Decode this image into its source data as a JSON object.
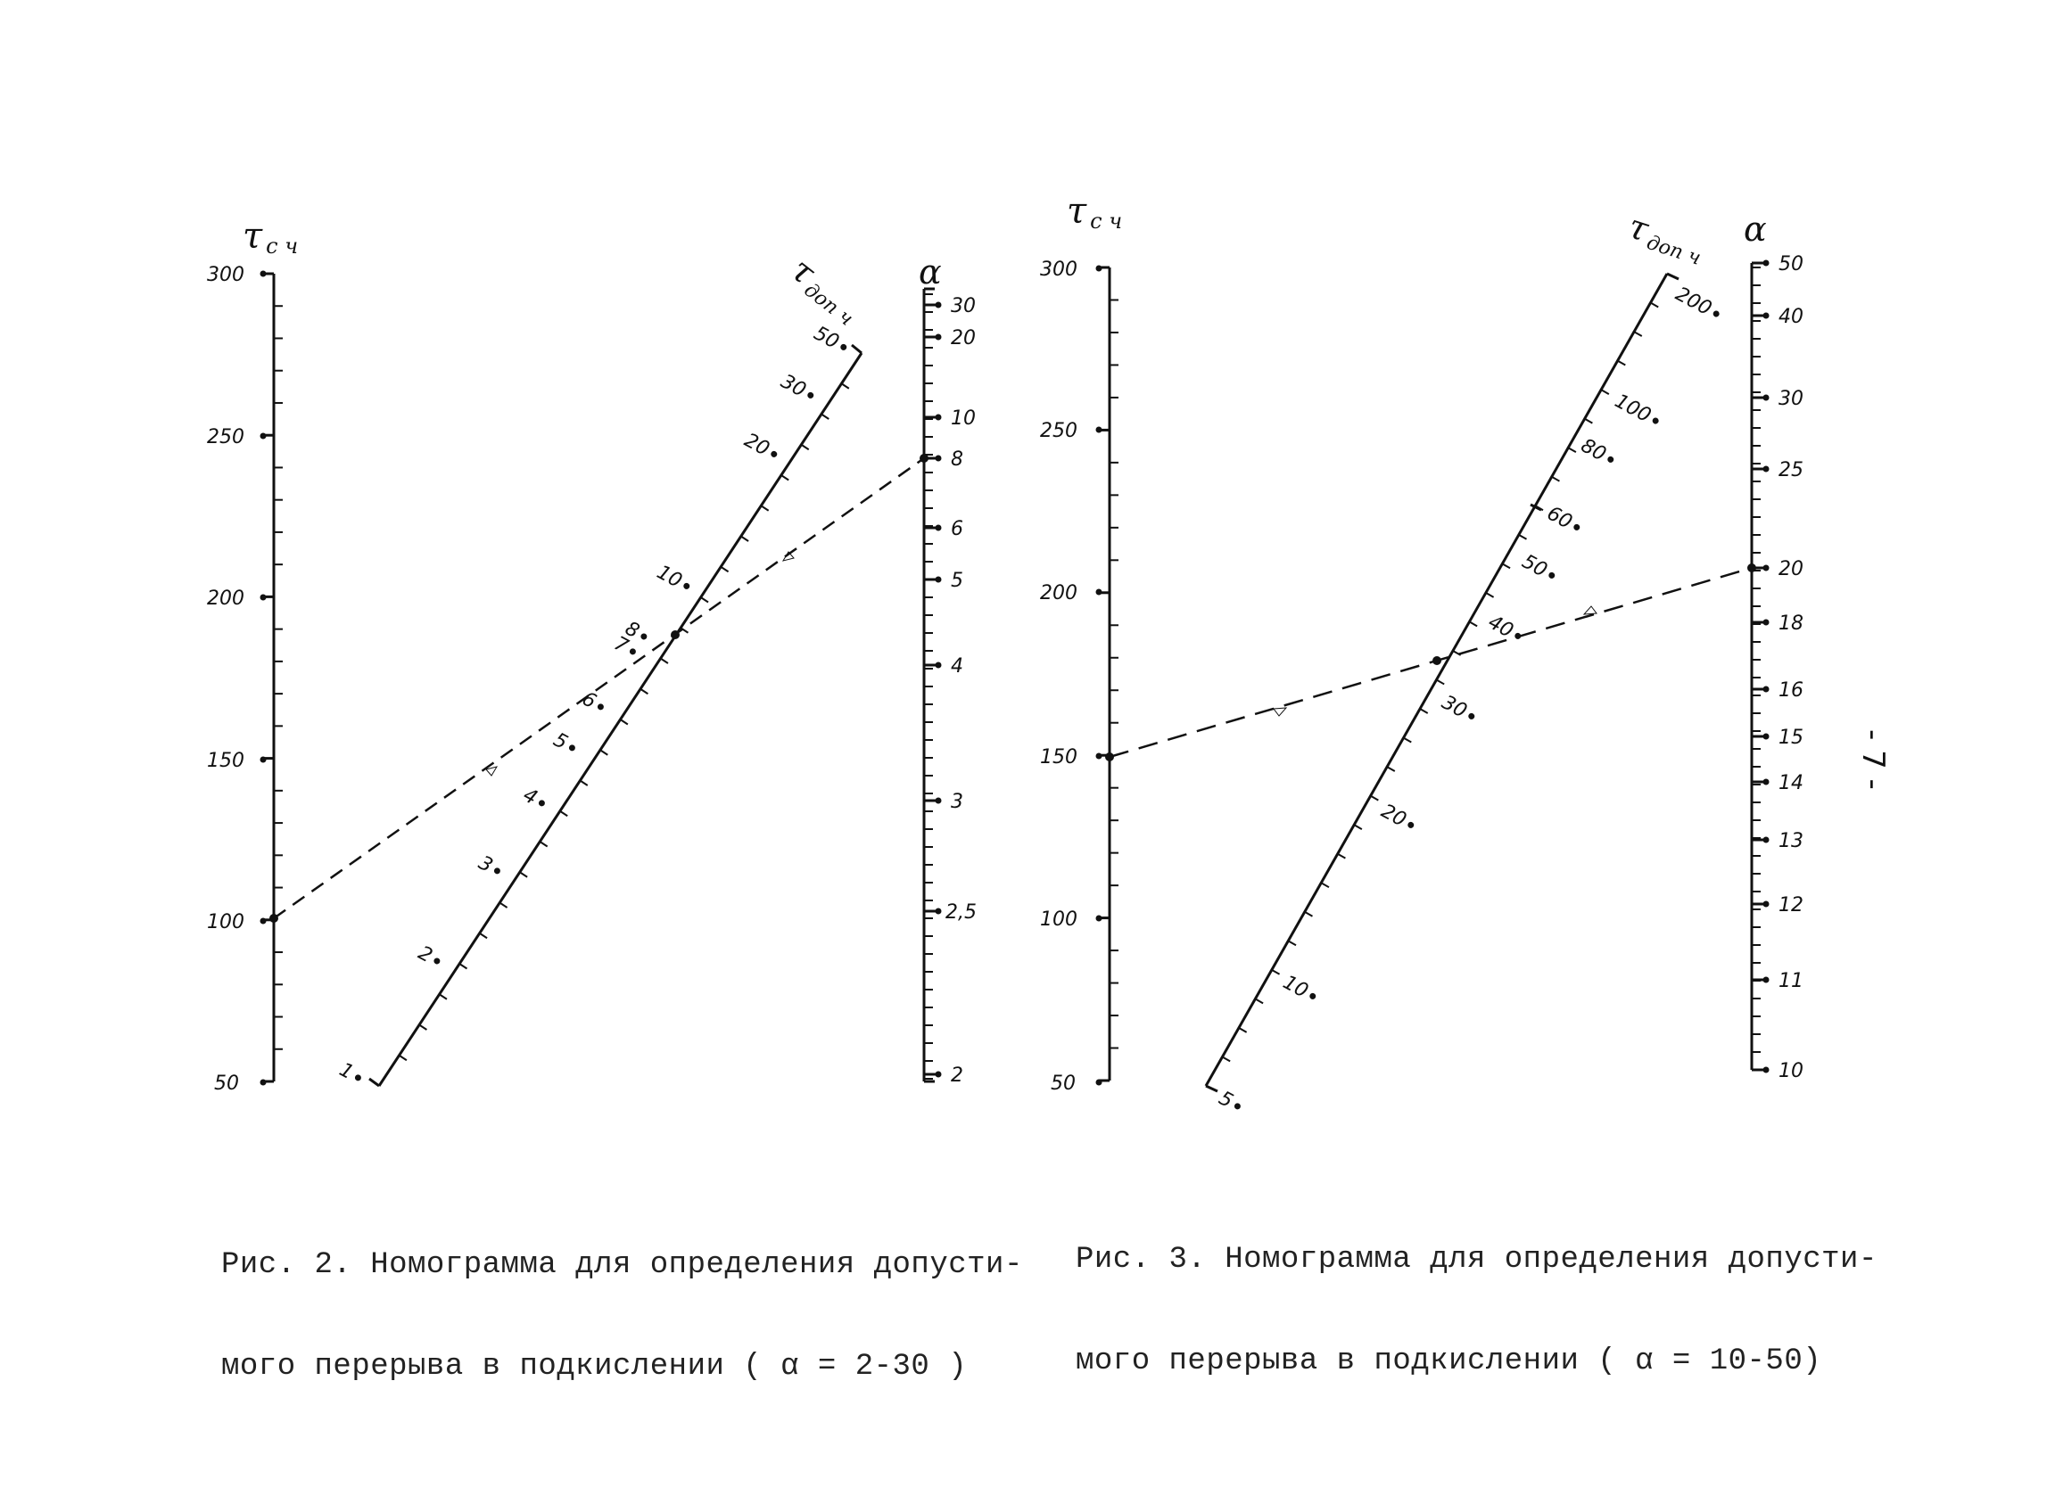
{
  "page_number": "- 7 -",
  "figure2": {
    "caption_line1": "Рис. 2. Номограмма для определения допусти-",
    "caption_line2": "мого перерыва в подкислении ( α = 2-30 )",
    "scale_left_label": "τс ч",
    "scale_middle_label": "τдоп ч",
    "scale_right_label": "α",
    "left_ticks": [
      "300",
      "250",
      "200",
      "150",
      "100",
      "50"
    ],
    "middle_ticks": [
      "1",
      "2",
      "3",
      "4",
      "5",
      "6",
      "7",
      "8",
      "10",
      "20",
      "30",
      "50"
    ],
    "right_ticks": [
      "30",
      "20",
      "10",
      "8",
      "6",
      "5",
      "4",
      "3",
      "2,5",
      "2"
    ],
    "example": {
      "left_value": 100,
      "right_value": 8
    }
  },
  "figure3": {
    "caption_line1": "Рис. 3. Номограмма для определения допусти-",
    "caption_line2": "мого перерыва в подкислении ( α = 10-50)",
    "scale_left_label": "τс ч",
    "scale_middle_label": "τдоп ч",
    "scale_right_label": "α",
    "left_ticks": [
      "300",
      "250",
      "200",
      "150",
      "100",
      "50"
    ],
    "middle_ticks": [
      "5",
      "10",
      "20",
      "30",
      "40",
      "50",
      "60",
      "80",
      "100",
      "200"
    ],
    "right_ticks": [
      "50",
      "40",
      "30",
      "25",
      "20",
      "18",
      "16",
      "15",
      "14",
      "13",
      "12",
      "11",
      "10"
    ],
    "example": {
      "left_value": 150,
      "right_value": 20
    }
  }
}
